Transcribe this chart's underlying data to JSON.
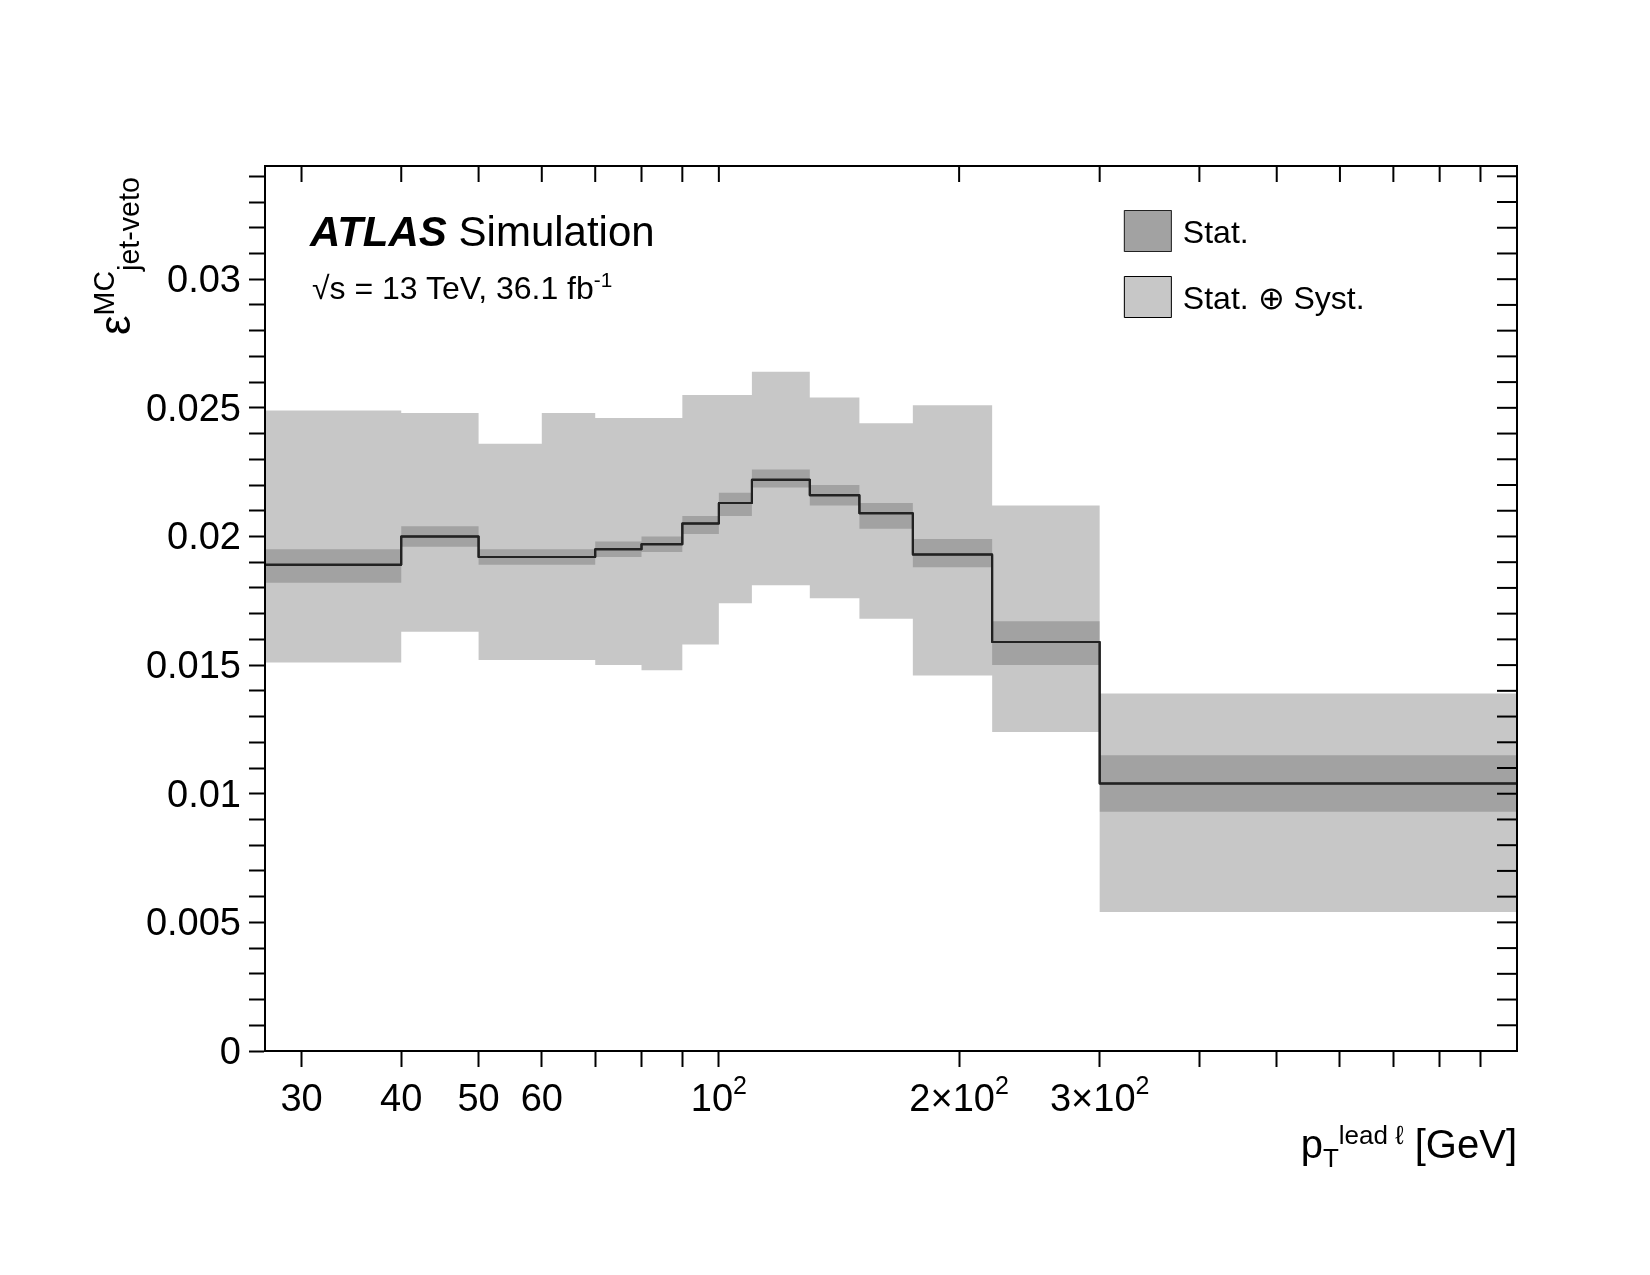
{
  "chart_data": {
    "type": "step",
    "xlabel": "p$_{T}$$^{lead ℓ}$ [GeV]",
    "ylabel": "ε$^{MC}$$_{jet-veto}$",
    "annotations": [
      "ATLAS Simulation",
      "√s = 13 TeV, 36.1 fb$^{-1}$"
    ],
    "series": [
      {
        "name": "Stat. ⊕ Syst.",
        "color": "#000000",
        "x": [
          27,
          40,
          50,
          60,
          70,
          80,
          90,
          100,
          110,
          130,
          150,
          175,
          220,
          300,
          1000
        ],
        "values": [
          0.0189,
          0.02,
          0.0192,
          0.0192,
          0.0195,
          0.0197,
          0.0205,
          0.0213,
          0.0222,
          0.0216,
          0.0209,
          0.0193,
          0.0159,
          0.0104,
          0.0104
        ],
        "lower": [
          0.0151,
          0.0163,
          0.0152,
          0.0152,
          0.015,
          0.0148,
          0.0158,
          0.0174,
          0.0181,
          0.0176,
          0.0168,
          0.0146,
          0.0124,
          0.0054,
          0.0054
        ],
        "upper": [
          0.0249,
          0.0248,
          0.0236,
          0.0248,
          0.0246,
          0.0246,
          0.0255,
          0.0255,
          0.0264,
          0.0254,
          0.0244,
          0.0251,
          0.0212,
          0.0139,
          0.0139
        ]
      },
      {
        "name": "Stat.",
        "color": "#222222",
        "x": [
          27,
          40,
          50,
          60,
          70,
          80,
          90,
          100,
          110,
          130,
          150,
          175,
          220,
          300,
          1000
        ],
        "values": [
          0.0189,
          0.02,
          0.0192,
          0.0192,
          0.0195,
          0.0197,
          0.0205,
          0.0213,
          0.0222,
          0.0216,
          0.0209,
          0.0193,
          0.0159,
          0.0104,
          0.0104
        ],
        "lower": [
          0.0182,
          0.0196,
          0.0189,
          0.0189,
          0.0192,
          0.0194,
          0.0201,
          0.0208,
          0.0219,
          0.0212,
          0.0203,
          0.0188,
          0.015,
          0.0093,
          0.0093
        ],
        "upper": [
          0.0195,
          0.0204,
          0.0195,
          0.0195,
          0.0198,
          0.02,
          0.0208,
          0.0217,
          0.0226,
          0.022,
          0.0213,
          0.0199,
          0.0167,
          0.0115,
          0.0115
        ]
      }
    ],
    "log": "x",
    "xlim": [
      27,
      1000
    ],
    "xticks": [
      30,
      40,
      50,
      60,
      {
        "value": 70,
        "label": null
      },
      {
        "value": 80,
        "label": null
      },
      {
        "value": 90,
        "label": null
      },
      {
        "value": 100,
        "label": "10$^{2}$"
      },
      {
        "value": 200,
        "label": "2×10$^{2}$"
      },
      {
        "value": 300,
        "label": "3×10$^{2}$"
      },
      {
        "value": 400,
        "label": null
      },
      {
        "value": 500,
        "label": null
      },
      {
        "value": 600,
        "label": null
      },
      {
        "value": 700,
        "label": null
      },
      {
        "value": 800,
        "label": null
      },
      {
        "value": 900,
        "label": null
      }
    ],
    "ylim": [
      0,
      0.0344
    ],
    "yticks": [
      0,
      {
        "value": 0.001,
        "label": null
      },
      {
        "value": 0.002,
        "label": null
      },
      {
        "value": 0.003,
        "label": null
      },
      {
        "value": 0.004,
        "label": null
      },
      0.005,
      {
        "value": 0.006,
        "label": null
      },
      {
        "value": 0.007,
        "label": null
      },
      {
        "value": 0.008,
        "label": null
      },
      {
        "value": 0.009,
        "label": null
      },
      0.01,
      {
        "value": 0.011,
        "label": null
      },
      {
        "value": 0.012,
        "label": null
      },
      {
        "value": 0.013,
        "label": null
      },
      {
        "value": 0.014,
        "label": null
      },
      0.015,
      {
        "value": 0.016,
        "label": null
      },
      {
        "value": 0.017,
        "label": null
      },
      {
        "value": 0.018,
        "label": null
      },
      {
        "value": 0.019,
        "label": null
      },
      0.02,
      {
        "value": 0.021,
        "label": null
      },
      {
        "value": 0.022,
        "label": null
      },
      {
        "value": 0.023,
        "label": null
      },
      {
        "value": 0.024,
        "label": null
      },
      0.025,
      {
        "value": 0.026,
        "label": null
      },
      {
        "value": 0.027,
        "label": null
      },
      {
        "value": 0.028,
        "label": null
      },
      {
        "value": 0.029,
        "label": null
      },
      0.03,
      {
        "value": 0.031,
        "label": null
      },
      {
        "value": 0.032,
        "label": null
      },
      {
        "value": 0.033,
        "label": null
      },
      {
        "value": 0.034,
        "label": null
      }
    ],
    "legend": "top right"
  }
}
